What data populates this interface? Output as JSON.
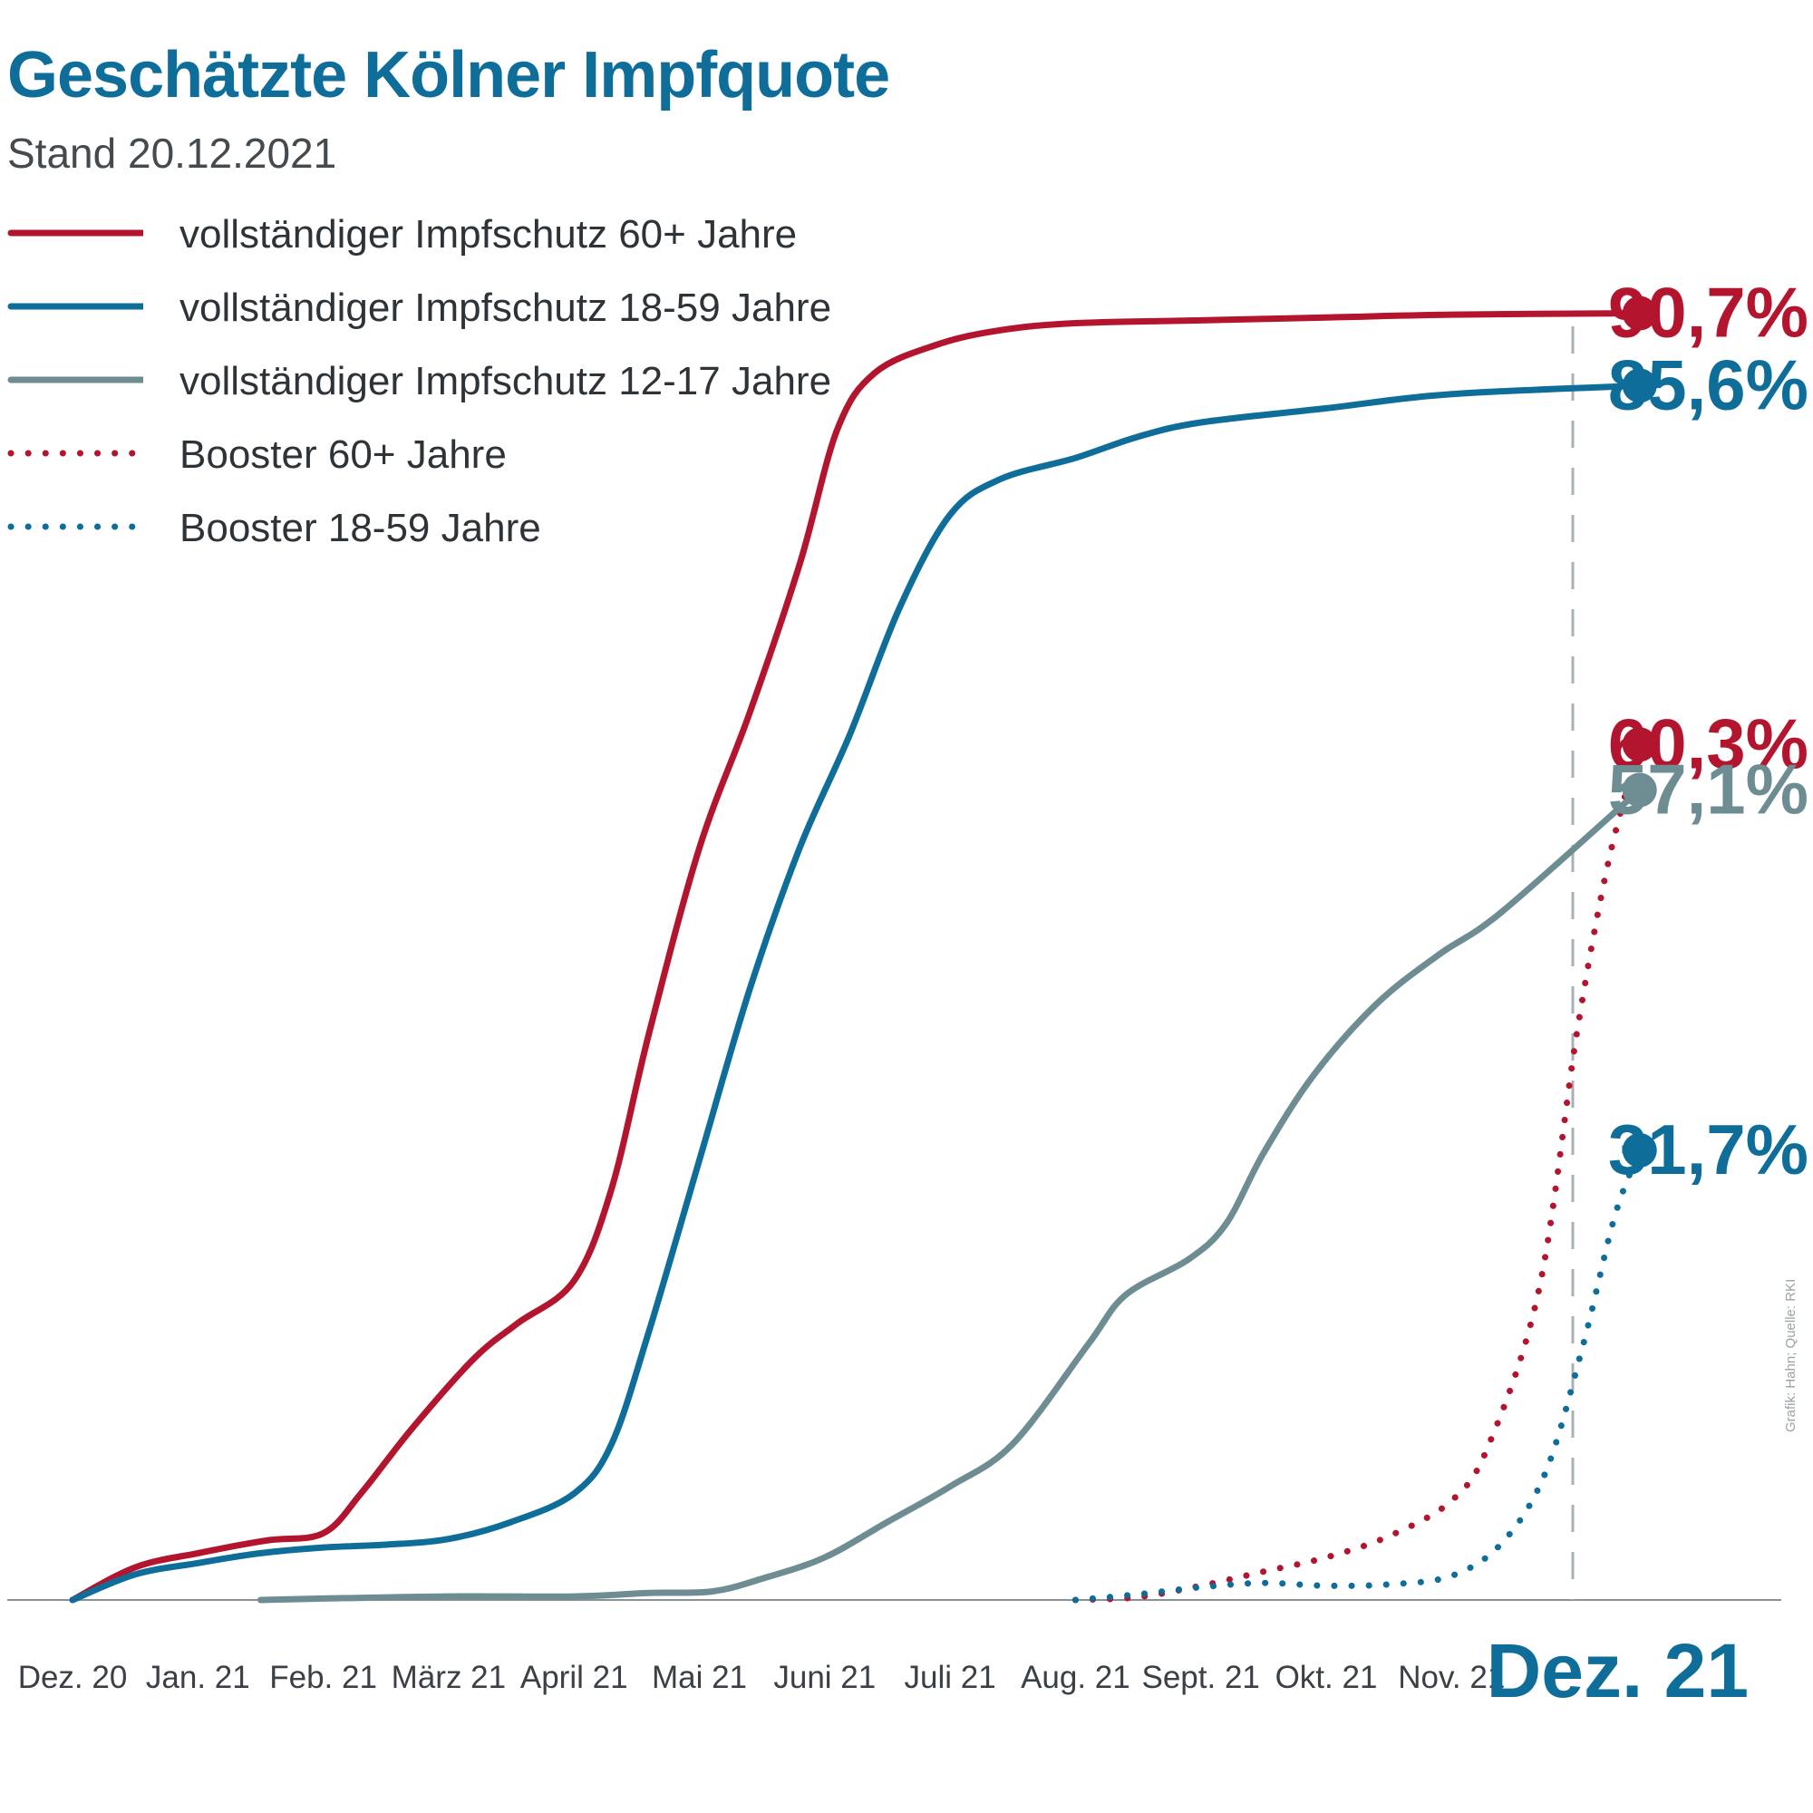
{
  "chart_data": {
    "type": "line",
    "title": "Geschätzte Kölner Impfquote",
    "subtitle": "Stand 20.12.2021",
    "categories": [
      "Dez. 20",
      "Jan. 21",
      "Feb. 21",
      "März 21",
      "April 21",
      "Mai 21",
      "Juni 21",
      "Juli 21",
      "Aug. 21",
      "Sept. 21",
      "Okt. 21",
      "Nov. 21",
      "Dez. 21"
    ],
    "xlabel": "",
    "ylabel": "",
    "ylim": [
      0,
      100
    ],
    "grid": false,
    "legend_position": "top-left",
    "series": [
      {
        "name": "vollständiger Impfschutz 60+ Jahre",
        "color": "#b3152f",
        "style": "solid",
        "points": [
          [
            0,
            0
          ],
          [
            0.5,
            2.3
          ],
          [
            1,
            3.3
          ],
          [
            1.55,
            4.2
          ],
          [
            2,
            4.7
          ],
          [
            2.3,
            7.5
          ],
          [
            2.7,
            12
          ],
          [
            3.2,
            17
          ],
          [
            3.55,
            19.5
          ],
          [
            4,
            22.5
          ],
          [
            4.3,
            29
          ],
          [
            4.6,
            40
          ],
          [
            5,
            53
          ],
          [
            5.4,
            62.5
          ],
          [
            5.8,
            73
          ],
          [
            6.1,
            82.5
          ],
          [
            6.4,
            86.5
          ],
          [
            6.9,
            88.5
          ],
          [
            7.4,
            89.5
          ],
          [
            8,
            90
          ],
          [
            9,
            90.2
          ],
          [
            10,
            90.4
          ],
          [
            11,
            90.6
          ],
          [
            12.5,
            90.7
          ]
        ]
      },
      {
        "name": "vollständiger Impfschutz 18-59 Jahre",
        "color": "#0f6e99",
        "style": "solid",
        "points": [
          [
            0,
            0
          ],
          [
            0.5,
            1.8
          ],
          [
            1,
            2.6
          ],
          [
            1.5,
            3.3
          ],
          [
            2,
            3.7
          ],
          [
            2.5,
            3.9
          ],
          [
            3,
            4.3
          ],
          [
            3.5,
            5.5
          ],
          [
            4,
            7.5
          ],
          [
            4.3,
            11
          ],
          [
            4.6,
            19
          ],
          [
            5,
            31
          ],
          [
            5.4,
            43
          ],
          [
            5.8,
            53
          ],
          [
            6.2,
            61
          ],
          [
            6.6,
            70
          ],
          [
            7,
            76.5
          ],
          [
            7.4,
            79
          ],
          [
            8,
            80.5
          ],
          [
            8.5,
            82
          ],
          [
            9,
            83
          ],
          [
            10,
            84
          ],
          [
            11,
            85
          ],
          [
            12.5,
            85.6
          ]
        ]
      },
      {
        "name": "vollständiger Impfschutz 12-17 Jahre",
        "color": "#6e8d93",
        "style": "solid",
        "points": [
          [
            1.5,
            0
          ],
          [
            2,
            0.1
          ],
          [
            3,
            0.25
          ],
          [
            4,
            0.25
          ],
          [
            4.6,
            0.5
          ],
          [
            5.1,
            0.6
          ],
          [
            5.5,
            1.5
          ],
          [
            6,
            3
          ],
          [
            6.5,
            5.5
          ],
          [
            7,
            8
          ],
          [
            7.5,
            11
          ],
          [
            8.1,
            18
          ],
          [
            8.4,
            21.5
          ],
          [
            8.9,
            24
          ],
          [
            9.2,
            26.5
          ],
          [
            9.5,
            31.5
          ],
          [
            9.9,
            37
          ],
          [
            10.4,
            42
          ],
          [
            10.9,
            45.5
          ],
          [
            11.4,
            48.5
          ],
          [
            12.5,
            57.1
          ]
        ]
      },
      {
        "name": "Booster 60+ Jahre",
        "color": "#b3152f",
        "style": "dotted",
        "points": [
          [
            8,
            0
          ],
          [
            8.5,
            0.2
          ],
          [
            9,
            1
          ],
          [
            9.5,
            2
          ],
          [
            10,
            3
          ],
          [
            10.5,
            4.5
          ],
          [
            11,
            7
          ],
          [
            11.3,
            11
          ],
          [
            11.7,
            22
          ],
          [
            12,
            40
          ],
          [
            12.25,
            52
          ],
          [
            12.5,
            60.3
          ]
        ]
      },
      {
        "name": "Booster 18-59 Jahre",
        "color": "#0f6e99",
        "style": "dotted",
        "points": [
          [
            8,
            0
          ],
          [
            8.5,
            0.4
          ],
          [
            9,
            0.9
          ],
          [
            9.5,
            1.2
          ],
          [
            10,
            1
          ],
          [
            10.5,
            1.1
          ],
          [
            11,
            1.7
          ],
          [
            11.4,
            4
          ],
          [
            11.75,
            9
          ],
          [
            12.05,
            18
          ],
          [
            12.3,
            27
          ],
          [
            12.5,
            31.7
          ]
        ]
      }
    ],
    "end_labels": [
      {
        "text": "90,7%",
        "value": 90.7,
        "color": "#b3152f"
      },
      {
        "text": "85,6%",
        "value": 85.6,
        "color": "#0f6e99"
      },
      {
        "text": "60,3%",
        "value": 60.3,
        "color": "#b3152f"
      },
      {
        "text": "57,1%",
        "value": 57.1,
        "color": "#6e8d93"
      },
      {
        "text": "31,7%",
        "value": 31.7,
        "color": "#0f6e99"
      }
    ],
    "highlight_category": "Dez. 21",
    "source_credit": "Grafik: Hahn; Quelle: RKI"
  }
}
